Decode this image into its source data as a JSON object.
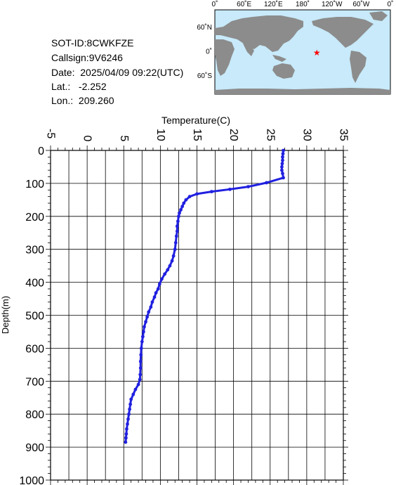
{
  "info": {
    "sot_id": "SOT-ID:8CWKFZE",
    "callsign": "Callsign:9V6246",
    "date": "Date:  2025/04/09 09:22(UTC)",
    "lat": "Lat.:   -2.252",
    "lon": "Lon.:  209.260"
  },
  "map": {
    "lon_ticks": [
      "0˚",
      "60˚E",
      "120˚E",
      "180˚",
      "120˚W",
      "60˚W",
      "0˚"
    ],
    "lat_ticks": [
      "60˚N",
      "0˚",
      "60˚S"
    ],
    "station": {
      "lat": -2.252,
      "lon": 209.26
    },
    "colors": {
      "ocean": "#c8eafa",
      "land": "#8c8c8c",
      "marker": "#ff0000"
    }
  },
  "chart_data": {
    "type": "line",
    "title": "",
    "xlabel": "Temperature(C)",
    "ylabel": "Depth(m)",
    "xlim": [
      -5,
      35
    ],
    "ylim": [
      1000,
      0
    ],
    "x_ticks": [
      -5,
      0,
      5,
      10,
      15,
      20,
      25,
      30,
      35
    ],
    "y_ticks": [
      0,
      100,
      200,
      300,
      400,
      500,
      600,
      700,
      800,
      900,
      1000
    ],
    "grid": true,
    "color": "#2020e0",
    "series": [
      {
        "x": [
          26.8,
          26.75,
          26.7,
          26.7,
          26.65,
          26.6,
          26.6,
          26.7,
          26.8,
          24.5,
          22.0,
          19.5,
          17.0,
          15.0,
          14.0,
          13.5,
          13.2,
          13.0,
          12.8,
          12.6,
          12.5,
          12.4,
          12.3,
          12.3,
          12.2,
          12.1,
          12.0,
          11.8,
          11.6,
          11.3,
          11.0,
          10.6,
          10.2,
          9.9,
          9.7,
          9.4,
          9.2,
          8.9,
          8.7,
          8.4,
          8.2,
          8.0,
          7.8,
          7.7,
          7.6,
          7.5,
          7.4,
          7.35,
          7.3,
          7.3,
          7.25,
          7.2,
          7.0,
          6.6,
          6.3,
          6.0,
          5.9,
          5.8,
          5.7,
          5.6,
          5.5,
          5.4,
          5.35,
          5.3,
          5.25
        ],
        "y": [
          0,
          10,
          20,
          30,
          40,
          50,
          60,
          70,
          83,
          98,
          110,
          118,
          125,
          132,
          140,
          150,
          160,
          170,
          180,
          190,
          200,
          215,
          230,
          245,
          260,
          280,
          300,
          320,
          335,
          350,
          362,
          375,
          390,
          405,
          420,
          432,
          445,
          460,
          475,
          490,
          505,
          520,
          535,
          550,
          565,
          580,
          600,
          620,
          640,
          660,
          680,
          695,
          710,
          725,
          740,
          755,
          770,
          785,
          800,
          815,
          830,
          845,
          860,
          872,
          885
        ]
      }
    ]
  }
}
